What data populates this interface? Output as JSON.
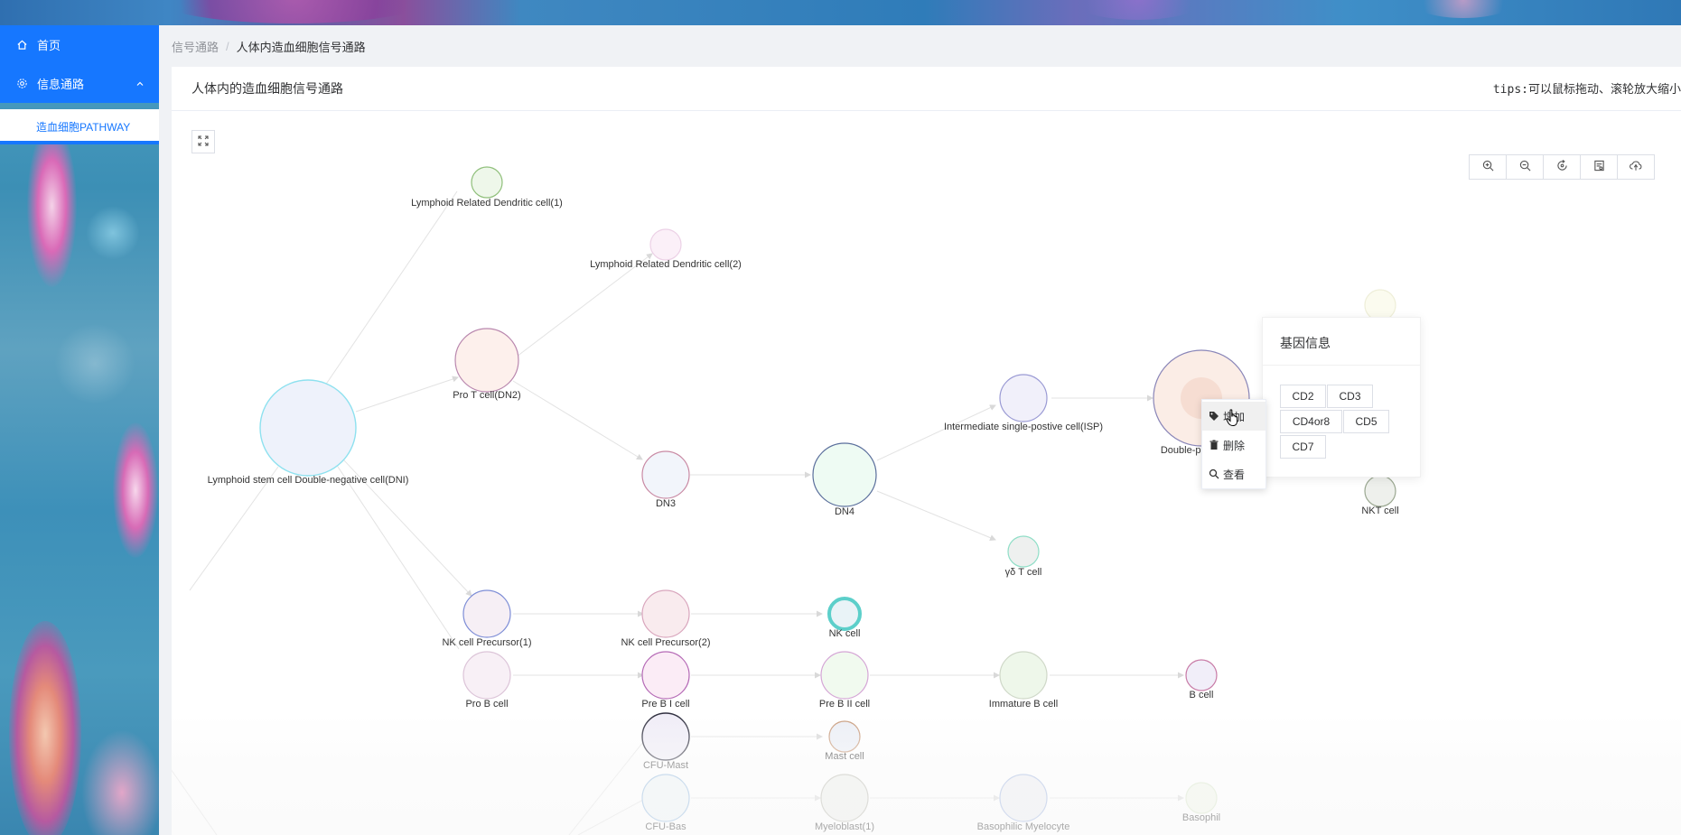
{
  "sidebar": {
    "items": [
      {
        "label": "首页",
        "icon": "home-icon"
      },
      {
        "label": "信息通路",
        "icon": "gear-icon",
        "expanded": true
      }
    ],
    "sub_items": [
      {
        "label": "造血细胞PATHWAY",
        "active": true
      }
    ]
  },
  "breadcrumb": {
    "parent": "信号通路",
    "current": "人体内造血细胞信号通路"
  },
  "card": {
    "title": "人体内的造血细胞信号通路",
    "tips": "tips:可以鼠标拖动、滚轮放大缩小"
  },
  "toolbar": {
    "buttons": [
      "zoom-in-icon",
      "zoom-out-icon",
      "refresh-icon",
      "image-icon",
      "download-icon"
    ]
  },
  "graph": {
    "nodes": [
      {
        "id": "lrdc1",
        "label": "Lymphoid Related Dendritic cell(1)"
      },
      {
        "id": "lrdc2",
        "label": "Lymphoid Related Dendritic cell(2)"
      },
      {
        "id": "prot",
        "label": "Pro T cell(DN2)"
      },
      {
        "id": "lsc",
        "label": "Lymphoid stem cell Double-negative cell(DNI)"
      },
      {
        "id": "dn3",
        "label": "DN3"
      },
      {
        "id": "dn4",
        "label": "DN4"
      },
      {
        "id": "isp",
        "label": "Intermediate single-postive cell(ISP)"
      },
      {
        "id": "dp",
        "label": "Double-pos"
      },
      {
        "id": "gdt",
        "label": "γδ T cell"
      },
      {
        "id": "nkt",
        "label": "NKT cell"
      },
      {
        "id": "nkp1",
        "label": "NK cell Precursor(1)"
      },
      {
        "id": "nkp2",
        "label": "NK cell Precursor(2)"
      },
      {
        "id": "nk",
        "label": "NK cell"
      },
      {
        "id": "prob",
        "label": "Pro B cell"
      },
      {
        "id": "preb1",
        "label": "Pre B I cell"
      },
      {
        "id": "preb2",
        "label": "Pre B II cell"
      },
      {
        "id": "immb",
        "label": "Immature B cell"
      },
      {
        "id": "bcell",
        "label": "B cell"
      },
      {
        "id": "cfumast",
        "label": "CFU-Mast"
      },
      {
        "id": "mast",
        "label": "Mast cell"
      },
      {
        "id": "cfubas",
        "label": "CFU-Bas"
      },
      {
        "id": "myelo1",
        "label": "Myeloblast(1)"
      },
      {
        "id": "basmye",
        "label": "Basophilic Myelocyte"
      },
      {
        "id": "baso",
        "label": "Basophil"
      }
    ]
  },
  "gene_panel": {
    "title": "基因信息",
    "tags": [
      "CD2",
      "CD3",
      "CD4or8",
      "CD5",
      "CD7"
    ]
  },
  "context_menu": {
    "items": [
      {
        "label": "增加",
        "icon": "tag-icon"
      },
      {
        "label": "删除",
        "icon": "trash-icon"
      },
      {
        "label": "查看",
        "icon": "search-icon"
      }
    ]
  }
}
